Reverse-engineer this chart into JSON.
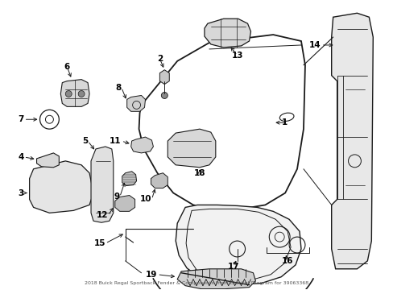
{
  "title": "2018 Buick Regal Sportback Fender & Components Front Bracket Diagram for 39063368",
  "background_color": "#ffffff",
  "text_color": "#000000",
  "line_color": "#1a1a1a",
  "fig_width": 4.89,
  "fig_height": 3.6,
  "dpi": 100
}
